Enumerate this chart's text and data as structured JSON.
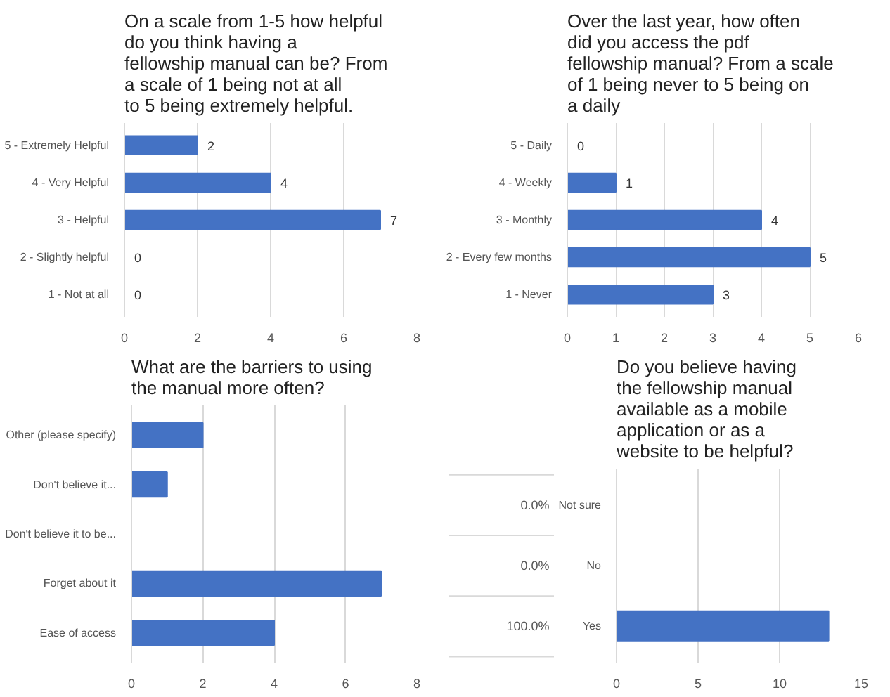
{
  "chart_data": [
    {
      "type": "bar",
      "orientation": "horizontal",
      "title": "On a scale from 1-5 how helpful do you think having a fellowship manual can be? From a scale of 1 being not at all to 5 being extremely helpful.",
      "categories": [
        "5 - Extremely Helpful",
        "4 - Very Helpful",
        "3 - Helpful",
        "2 - Slightly helpful",
        "1 - Not at all"
      ],
      "values": [
        2,
        4,
        7,
        0,
        0
      ],
      "color": "#4472c4",
      "xlim": [
        0,
        8
      ],
      "xticks": [
        0,
        2,
        4,
        6,
        8
      ],
      "grid": "x",
      "data_labels": true
    },
    {
      "type": "bar",
      "orientation": "horizontal",
      "title": "Over the last year, how often did you access the pdf fellowship manual? From a scale of 1 being never to 5 being on a daily",
      "categories": [
        "5 - Daily",
        "4 - Weekly",
        "3 - Monthly",
        "2 - Every few months",
        "1 - Never"
      ],
      "values": [
        0,
        1,
        4,
        5,
        3
      ],
      "color": "#4472c4",
      "xlim": [
        0,
        6
      ],
      "xticks": [
        0,
        1,
        2,
        3,
        4,
        5,
        6
      ],
      "grid": "x",
      "data_labels": true
    },
    {
      "type": "bar",
      "orientation": "horizontal",
      "title": "What are the barriers to using the manual more often?",
      "categories": [
        "Other (please specify)",
        "Don't believe it...",
        "Don't believe it to be...",
        "Forget about it",
        "Ease of access"
      ],
      "values": [
        2,
        1,
        0,
        7,
        4
      ],
      "color": "#4472c4",
      "xlim": [
        0,
        8
      ],
      "xticks": [
        0,
        2,
        4,
        6,
        8
      ],
      "grid": "x"
    },
    {
      "type": "bar",
      "orientation": "horizontal",
      "title": "Do you believe having the fellowship manual available as a mobile application or as a website to be helpful?",
      "categories": [
        "Not sure",
        "No",
        "Yes"
      ],
      "values": [
        0,
        0,
        13
      ],
      "annotations": [
        "0.0%",
        "0.0%",
        "100.0%"
      ],
      "color": "#4472c4",
      "xlim": [
        0,
        15
      ],
      "xticks": [
        0,
        5,
        10,
        15
      ],
      "grid": "x"
    }
  ]
}
